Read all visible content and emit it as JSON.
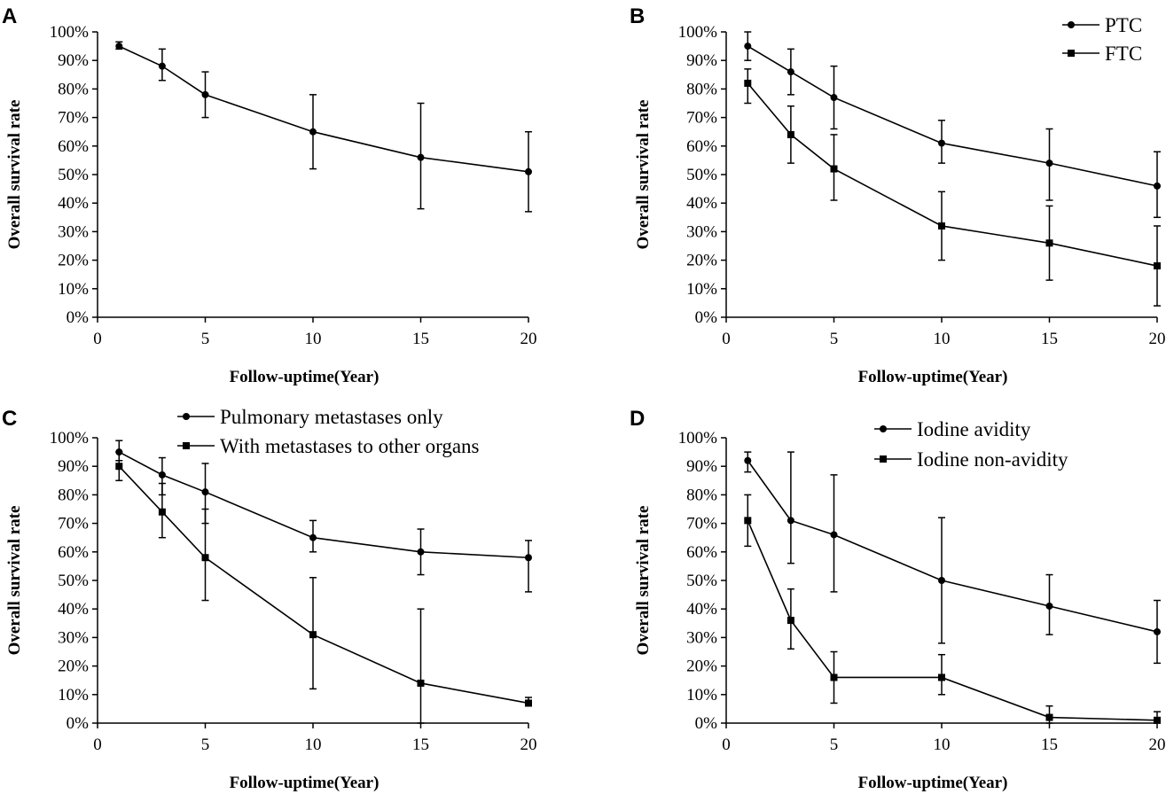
{
  "chart_data": [
    {
      "panel": "A",
      "type": "line",
      "xlabel": "Follow-uptime(Year)",
      "ylabel": "Overall survival rate",
      "xlim": [
        0,
        20
      ],
      "ylim": [
        0,
        100
      ],
      "xticks": [
        "0",
        "5",
        "10",
        "15",
        "20"
      ],
      "yticks": [
        "0%",
        "10%",
        "20%",
        "30%",
        "40%",
        "50%",
        "60%",
        "70%",
        "80%",
        "90%",
        "100%"
      ],
      "legend": "none",
      "series": [
        {
          "name": "",
          "marker": "circle",
          "x": [
            1,
            3,
            5,
            10,
            15,
            20
          ],
          "values": [
            95,
            88,
            78,
            65,
            56,
            51
          ],
          "err_low": [
            94,
            83,
            70,
            52,
            38,
            37
          ],
          "err_high": [
            96.5,
            94,
            86,
            78,
            75,
            65
          ]
        }
      ]
    },
    {
      "panel": "B",
      "type": "line",
      "xlabel": "Follow-uptime(Year)",
      "ylabel": "Overall survival rate",
      "xlim": [
        0,
        20
      ],
      "ylim": [
        0,
        100
      ],
      "xticks": [
        "0",
        "5",
        "10",
        "15",
        "20"
      ],
      "yticks": [
        "0%",
        "10%",
        "20%",
        "30%",
        "40%",
        "50%",
        "60%",
        "70%",
        "80%",
        "90%",
        "100%"
      ],
      "legend": "top-right",
      "series": [
        {
          "name": "PTC",
          "marker": "circle",
          "x": [
            1,
            3,
            5,
            10,
            15,
            20
          ],
          "values": [
            95,
            86,
            77,
            61,
            54,
            46
          ],
          "err_low": [
            90,
            78,
            66,
            54,
            41,
            35
          ],
          "err_high": [
            100,
            94,
            88,
            69,
            66,
            58
          ]
        },
        {
          "name": "FTC",
          "marker": "square",
          "x": [
            1,
            3,
            5,
            10,
            15,
            20
          ],
          "values": [
            82,
            64,
            52,
            32,
            26,
            18
          ],
          "err_low": [
            75,
            54,
            41,
            20,
            13,
            4
          ],
          "err_high": [
            87,
            74,
            64,
            44,
            39,
            32
          ]
        }
      ]
    },
    {
      "panel": "C",
      "type": "line",
      "xlabel": "Follow-uptime(Year)",
      "ylabel": "Overall survival rate",
      "xlim": [
        0,
        20
      ],
      "ylim": [
        0,
        100
      ],
      "xticks": [
        "0",
        "5",
        "10",
        "15",
        "20"
      ],
      "yticks": [
        "0%",
        "10%",
        "20%",
        "30%",
        "40%",
        "50%",
        "60%",
        "70%",
        "80%",
        "90%",
        "100%"
      ],
      "legend": "top-right",
      "series": [
        {
          "name": "Pulmonary metastases only",
          "marker": "circle",
          "x": [
            1,
            3,
            5,
            10,
            15,
            20
          ],
          "values": [
            95,
            87,
            81,
            65,
            60,
            58
          ],
          "err_low": [
            92,
            80,
            70,
            60,
            52,
            46
          ],
          "err_high": [
            99,
            93,
            91,
            71,
            68,
            64
          ]
        },
        {
          "name": "With metastases to other organs",
          "marker": "square",
          "x": [
            1,
            3,
            5,
            10,
            15,
            20
          ],
          "values": [
            90,
            74,
            58,
            31,
            14,
            7
          ],
          "err_low": [
            85,
            65,
            43,
            12,
            0,
            6
          ],
          "err_high": [
            95,
            84,
            75,
            51,
            40,
            9
          ]
        }
      ]
    },
    {
      "panel": "D",
      "type": "line",
      "xlabel": "Follow-uptime(Year)",
      "ylabel": "Overall survival rate",
      "xlim": [
        0,
        20
      ],
      "ylim": [
        0,
        100
      ],
      "xticks": [
        "0",
        "5",
        "10",
        "15",
        "20"
      ],
      "yticks": [
        "0%",
        "10%",
        "20%",
        "30%",
        "40%",
        "50%",
        "60%",
        "70%",
        "80%",
        "90%",
        "100%"
      ],
      "legend": "top-right",
      "series": [
        {
          "name": "Iodine avidity",
          "marker": "circle",
          "x": [
            1,
            3,
            5,
            10,
            15,
            20
          ],
          "values": [
            92,
            71,
            66,
            50,
            41,
            32
          ],
          "err_low": [
            88,
            56,
            46,
            28,
            31,
            21
          ],
          "err_high": [
            95,
            95,
            87,
            72,
            52,
            43
          ]
        },
        {
          "name": "Iodine non-avidity",
          "marker": "square",
          "x": [
            1,
            3,
            5,
            10,
            15,
            20
          ],
          "values": [
            71,
            36,
            16,
            16,
            2,
            1
          ],
          "err_low": [
            62,
            26,
            7,
            10,
            0,
            0
          ],
          "err_high": [
            80,
            47,
            25,
            24,
            6,
            4
          ]
        }
      ]
    }
  ]
}
